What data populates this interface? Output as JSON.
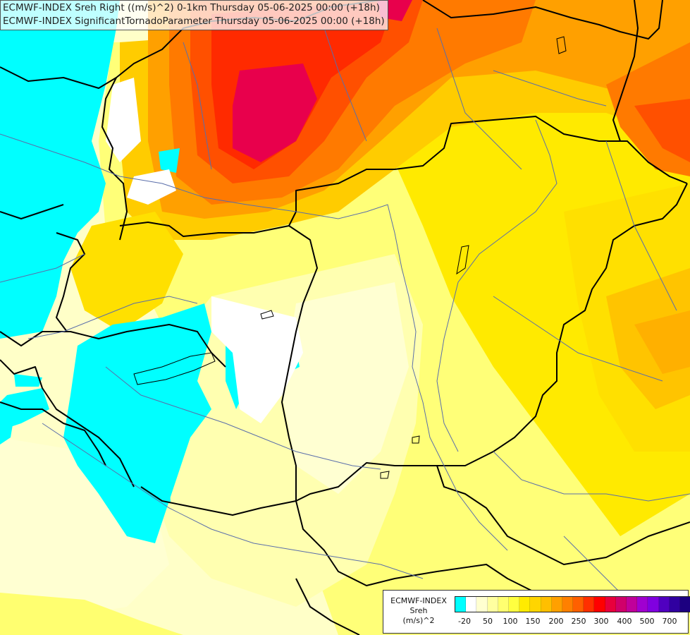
{
  "header": {
    "line1": "ECMWF-INDEX Sreh Right ((m/s)^2) 0-1km Thursday 05-06-2025 00:00 (+18h)",
    "line2": "ECMWF-INDEX SignificantTornadoParameter Thursday 05-06-2025 00:00 (+18h)"
  },
  "legend": {
    "model": "ECMWF-INDEX",
    "parameter": "Sreh",
    "unit": "(m/s)^2",
    "colors": [
      "#00ffff",
      "#ffffff",
      "#ffffd0",
      "#ffffa0",
      "#ffff70",
      "#ffff40",
      "#ffeb00",
      "#ffd500",
      "#ffbf00",
      "#ffa000",
      "#ff8000",
      "#ff6000",
      "#ff3000",
      "#ff0000",
      "#e8003c",
      "#d0006a",
      "#c0009a",
      "#a000d0",
      "#8000e0",
      "#5000c0",
      "#3000a0",
      "#1c0080"
    ],
    "ticks": [
      "-20",
      "50",
      "100",
      "150",
      "200",
      "250",
      "300",
      "400",
      "500",
      "700"
    ]
  },
  "map_colors": {
    "background": "#ffffc8",
    "cyan": "#00ffff",
    "white": "#ffffff",
    "pale_yellow": "#ffffa8",
    "yellow": "#ffff60",
    "yellow_deep": "#ffea00",
    "gold": "#ffcc00",
    "orange": "#ffa000",
    "dark_orange": "#ff7a00",
    "red_orange": "#ff5000",
    "red": "#ff2a00",
    "crimson": "#e8004c",
    "border_line": "#000000",
    "river_line": "#5a6eaa"
  }
}
